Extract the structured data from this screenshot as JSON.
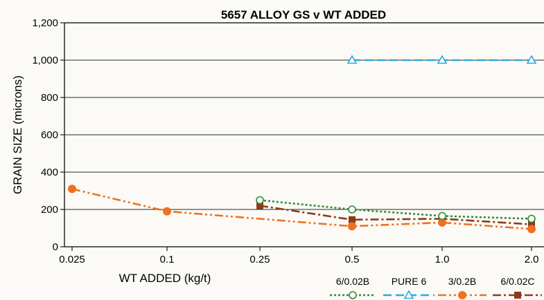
{
  "chart_data": {
    "type": "line",
    "title": "5657 ALLOY GS v WT ADDED",
    "xlabel": "WT ADDED (kg/t)",
    "ylabel": "GRAIN SIZE (microns)",
    "categories": [
      "0.025",
      "0.1",
      "0.25",
      "0.5",
      "1.0",
      "2.0"
    ],
    "y_ticks": [
      "0",
      "200",
      "400",
      "600",
      "800",
      "1,000",
      "1,200"
    ],
    "ylim": [
      0,
      1200
    ],
    "grid": "horizontal",
    "legend_position": "bottom-right",
    "series": [
      {
        "name": "6/0.02B",
        "color": "#2e8b3a",
        "marker": "open-circle",
        "dash": "dotted",
        "values": [
          null,
          null,
          250,
          200,
          165,
          150
        ]
      },
      {
        "name": "PURE 6",
        "color": "#2aa8e8",
        "marker": "open-triangle",
        "dash": "dashed",
        "values": [
          null,
          null,
          null,
          1000,
          1000,
          1000
        ]
      },
      {
        "name": "3/0.2B",
        "color": "#f07020",
        "marker": "filled-circle",
        "dash": "dash-dot-dot",
        "values": [
          310,
          190,
          null,
          110,
          130,
          95
        ]
      },
      {
        "name": "6/0.02C",
        "color": "#8b3a1a",
        "marker": "filled-square",
        "dash": "dash-dot",
        "values": [
          null,
          null,
          220,
          145,
          150,
          120
        ]
      }
    ]
  }
}
